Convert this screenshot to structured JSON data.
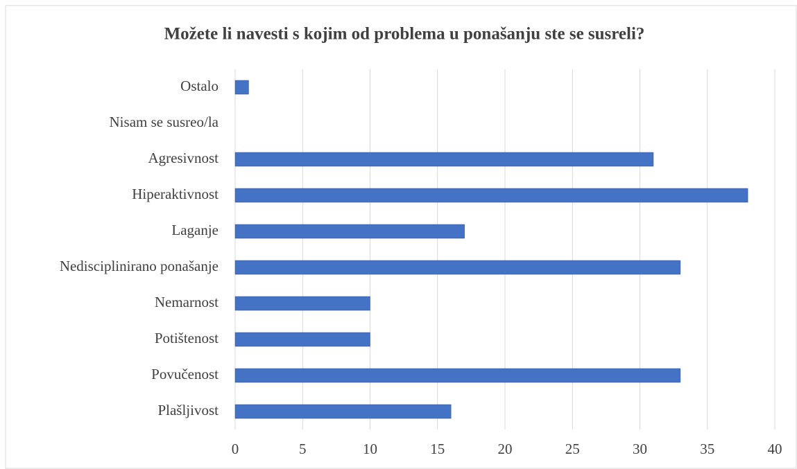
{
  "chart_data": {
    "type": "bar",
    "orientation": "horizontal",
    "title": "Možete li navesti s kojim od problema u ponašanju ste se susreli?",
    "categories": [
      "Plašljivost",
      "Povučenost",
      "Potištenost",
      "Nemarnost",
      "Nedisciplinirano ponašanje",
      "Laganje",
      "Hiperaktivnost",
      "Agresivnost",
      "Nisam se susreo/la",
      "Ostalo"
    ],
    "values": [
      16,
      33,
      10,
      10,
      33,
      17,
      38,
      31,
      0,
      1
    ],
    "color": "#4472c4",
    "xlim": [
      0,
      40
    ],
    "xticks": [
      0,
      5,
      10,
      15,
      20,
      25,
      30,
      35,
      40
    ],
    "grid": true
  }
}
